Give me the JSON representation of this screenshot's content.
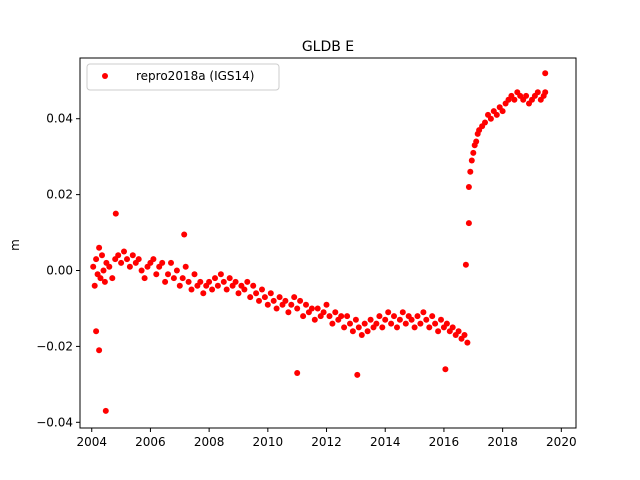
{
  "chart_data": {
    "type": "scatter",
    "title": "GLDB E",
    "xlabel": "",
    "ylabel": "m",
    "xlim": [
      2003.6,
      2020.5
    ],
    "ylim": [
      -0.0415,
      0.056
    ],
    "xticks": [
      2004,
      2006,
      2008,
      2010,
      2012,
      2014,
      2016,
      2018,
      2020
    ],
    "xtick_labels": [
      "2004",
      "2006",
      "2008",
      "2010",
      "2012",
      "2014",
      "2016",
      "2018",
      "2020"
    ],
    "yticks": [
      -0.04,
      -0.02,
      0.0,
      0.02,
      0.04
    ],
    "ytick_labels": [
      "−0.04",
      "−0.02",
      "0.00",
      "0.02",
      "0.04"
    ],
    "grid": false,
    "legend_position": "upper-left",
    "series": [
      {
        "name": "repro2018a (IGS14)",
        "color": "#ff0000",
        "marker": "circle",
        "x": [
          2004.05,
          2004.1,
          2004.15,
          2004.2,
          2004.25,
          2004.3,
          2004.35,
          2004.4,
          2004.45,
          2004.5,
          2004.6,
          2004.7,
          2004.8,
          2004.9,
          2005.0,
          2005.1,
          2005.2,
          2005.3,
          2005.4,
          2005.5,
          2005.6,
          2005.7,
          2005.8,
          2005.9,
          2006.0,
          2006.1,
          2006.2,
          2006.3,
          2006.4,
          2006.5,
          2006.6,
          2006.7,
          2006.8,
          2006.9,
          2007.0,
          2007.1,
          2007.2,
          2007.3,
          2007.4,
          2007.5,
          2007.6,
          2007.7,
          2007.8,
          2007.9,
          2008.0,
          2008.1,
          2008.2,
          2008.3,
          2008.4,
          2008.5,
          2008.6,
          2008.7,
          2008.8,
          2008.9,
          2009.0,
          2009.1,
          2009.2,
          2009.3,
          2009.4,
          2009.5,
          2009.6,
          2009.7,
          2009.8,
          2009.9,
          2010.0,
          2010.1,
          2010.2,
          2010.3,
          2010.4,
          2010.5,
          2010.6,
          2010.7,
          2010.8,
          2010.9,
          2011.0,
          2011.1,
          2011.2,
          2011.3,
          2011.4,
          2011.5,
          2011.6,
          2011.7,
          2011.8,
          2011.9,
          2012.0,
          2012.1,
          2012.2,
          2012.3,
          2012.4,
          2012.5,
          2012.6,
          2012.7,
          2012.8,
          2012.9,
          2013.0,
          2013.1,
          2013.2,
          2013.3,
          2013.4,
          2013.5,
          2013.6,
          2013.7,
          2013.8,
          2013.9,
          2014.0,
          2014.1,
          2014.2,
          2014.3,
          2014.4,
          2014.5,
          2014.6,
          2014.7,
          2014.8,
          2014.9,
          2015.0,
          2015.1,
          2015.2,
          2015.3,
          2015.4,
          2015.5,
          2015.6,
          2015.7,
          2015.8,
          2015.9,
          2016.0,
          2016.1,
          2016.2,
          2016.3,
          2016.4,
          2016.5,
          2016.6,
          2016.7,
          2016.8,
          2016.85,
          2016.9,
          2016.95,
          2017.0,
          2017.05,
          2017.1,
          2017.15,
          2017.2,
          2017.3,
          2017.4,
          2017.5,
          2017.6,
          2017.7,
          2017.8,
          2017.9,
          2018.0,
          2018.1,
          2018.2,
          2018.3,
          2018.4,
          2018.5,
          2018.6,
          2018.7,
          2018.8,
          2018.9,
          2019.0,
          2019.1,
          2019.2,
          2019.3,
          2019.4,
          2019.45
        ],
        "y": [
          0.001,
          -0.004,
          0.003,
          -0.001,
          0.006,
          -0.002,
          0.004,
          0.0,
          -0.003,
          0.002,
          0.001,
          -0.002,
          0.003,
          0.004,
          0.002,
          0.005,
          0.003,
          0.001,
          0.004,
          0.002,
          0.003,
          0.0,
          -0.002,
          0.001,
          0.002,
          0.003,
          -0.001,
          0.001,
          0.002,
          -0.003,
          -0.001,
          0.002,
          -0.002,
          0.0,
          -0.004,
          -0.002,
          0.001,
          -0.003,
          -0.005,
          -0.001,
          -0.004,
          -0.003,
          -0.006,
          -0.004,
          -0.003,
          -0.005,
          -0.002,
          -0.004,
          -0.001,
          -0.003,
          -0.005,
          -0.002,
          -0.004,
          -0.003,
          -0.006,
          -0.004,
          -0.005,
          -0.003,
          -0.007,
          -0.004,
          -0.006,
          -0.008,
          -0.005,
          -0.007,
          -0.009,
          -0.006,
          -0.008,
          -0.01,
          -0.007,
          -0.009,
          -0.008,
          -0.011,
          -0.009,
          -0.007,
          -0.01,
          -0.008,
          -0.012,
          -0.009,
          -0.011,
          -0.01,
          -0.013,
          -0.01,
          -0.012,
          -0.011,
          -0.009,
          -0.012,
          -0.014,
          -0.011,
          -0.013,
          -0.012,
          -0.015,
          -0.012,
          -0.014,
          -0.016,
          -0.013,
          -0.015,
          -0.017,
          -0.014,
          -0.016,
          -0.013,
          -0.015,
          -0.014,
          -0.012,
          -0.015,
          -0.013,
          -0.011,
          -0.014,
          -0.012,
          -0.015,
          -0.013,
          -0.011,
          -0.014,
          -0.012,
          -0.013,
          -0.015,
          -0.012,
          -0.014,
          -0.011,
          -0.013,
          -0.015,
          -0.012,
          -0.014,
          -0.016,
          -0.013,
          -0.015,
          -0.014,
          -0.016,
          -0.015,
          -0.017,
          -0.016,
          -0.018,
          -0.017,
          -0.019,
          0.022,
          0.026,
          0.029,
          0.031,
          0.033,
          0.034,
          0.036,
          0.037,
          0.038,
          0.039,
          0.041,
          0.04,
          0.042,
          0.041,
          0.043,
          0.042,
          0.044,
          0.045,
          0.046,
          0.045,
          0.047,
          0.046,
          0.045,
          0.046,
          0.044,
          0.045,
          0.046,
          0.047,
          0.045,
          0.046,
          0.047
        ],
        "outliers_x": [
          2004.15,
          2004.25,
          2004.48,
          2004.82,
          2007.15,
          2011.0,
          2013.05,
          2016.05,
          2016.75,
          2016.85,
          2019.45
        ],
        "outliers_y": [
          -0.016,
          -0.021,
          -0.037,
          0.015,
          0.0095,
          -0.027,
          -0.0275,
          -0.026,
          0.0015,
          0.0125,
          0.052
        ]
      }
    ]
  }
}
